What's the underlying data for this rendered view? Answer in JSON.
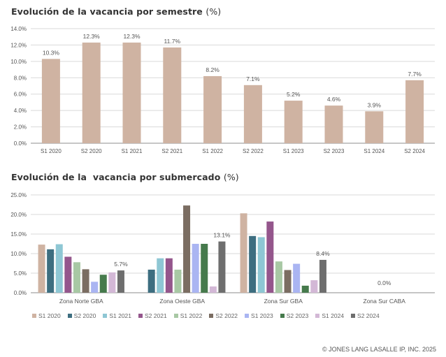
{
  "chart_data": [
    {
      "type": "bar",
      "title": "Evolución de la vacancia por semestre",
      "title_unit": "(%)",
      "xlabel": "",
      "ylabel": "",
      "ylim": [
        0,
        14
      ],
      "yticks": [
        0,
        2,
        4,
        6,
        8,
        10,
        12,
        14
      ],
      "ytick_labels": [
        "0.0%",
        "2.0%",
        "4.0%",
        "6.0%",
        "8.0%",
        "10.0%",
        "12.0%",
        "14.0%"
      ],
      "grid": true,
      "categories": [
        "S1 2020",
        "S2 2020",
        "S1 2021",
        "S2 2021",
        "S1 2022",
        "S2 2022",
        "S1 2023",
        "S2 2023",
        "S1 2024",
        "S2 2024"
      ],
      "values": [
        10.3,
        12.3,
        12.3,
        11.7,
        8.2,
        7.1,
        5.2,
        4.6,
        3.9,
        7.7
      ],
      "data_labels": [
        "10.3%",
        "12.3%",
        "12.3%",
        "11.7%",
        "8.2%",
        "7.1%",
        "5.2%",
        "4.6%",
        "3.9%",
        "7.7%"
      ],
      "color": "#cfb3a2"
    },
    {
      "type": "bar",
      "title": "Evolución de la  vacancia por submercado",
      "title_unit": "(%)",
      "xlabel": "",
      "ylabel": "",
      "ylim": [
        0,
        25
      ],
      "yticks": [
        0,
        5,
        10,
        15,
        20,
        25
      ],
      "ytick_labels": [
        "0.0%",
        "5.0%",
        "10.0%",
        "15.0%",
        "20.0%",
        "25.0%"
      ],
      "grid": true,
      "legend_position": "bottom",
      "categories": [
        "Zona Norte GBA",
        "Zona Oeste GBA",
        "Zona Sur GBA",
        "Zona Sur CABA"
      ],
      "series": [
        {
          "name": "S1 2020",
          "color": "#cfb3a2",
          "values": [
            12.3,
            0,
            20.3,
            0
          ]
        },
        {
          "name": "S2 2020",
          "color": "#3d6e80",
          "values": [
            11.1,
            5.9,
            14.5,
            0
          ]
        },
        {
          "name": "S1 2021",
          "color": "#8ec7d4",
          "values": [
            12.4,
            8.8,
            14.2,
            0
          ]
        },
        {
          "name": "S2 2021",
          "color": "#94568c",
          "values": [
            9.2,
            8.8,
            18.2,
            0
          ]
        },
        {
          "name": "S1 2022",
          "color": "#a8c8a4",
          "values": [
            7.8,
            5.9,
            8.0,
            0
          ]
        },
        {
          "name": "S2 2022",
          "color": "#7b6d62",
          "values": [
            6.0,
            22.3,
            5.8,
            0
          ]
        },
        {
          "name": "S1 2023",
          "color": "#aab5f2",
          "values": [
            2.8,
            12.5,
            7.4,
            0
          ]
        },
        {
          "name": "S2 2023",
          "color": "#467a4c",
          "values": [
            4.6,
            12.5,
            1.8,
            0
          ]
        },
        {
          "name": "S1 2024",
          "color": "#d3b8d6",
          "values": [
            5.2,
            1.6,
            3.2,
            0
          ]
        },
        {
          "name": "S2 2024",
          "color": "#6e6e6e",
          "values": [
            5.7,
            13.1,
            8.4,
            0
          ]
        }
      ],
      "data_labels_last_series": [
        "5.7%",
        "13.1%",
        "8.4%",
        "0.0%"
      ]
    }
  ],
  "footer": "© JONES LANG LASALLE IP, INC. 2025",
  "colors": {
    "grid": "#d9d9d9",
    "axis": "#8c8c8c",
    "text": "#555555"
  }
}
